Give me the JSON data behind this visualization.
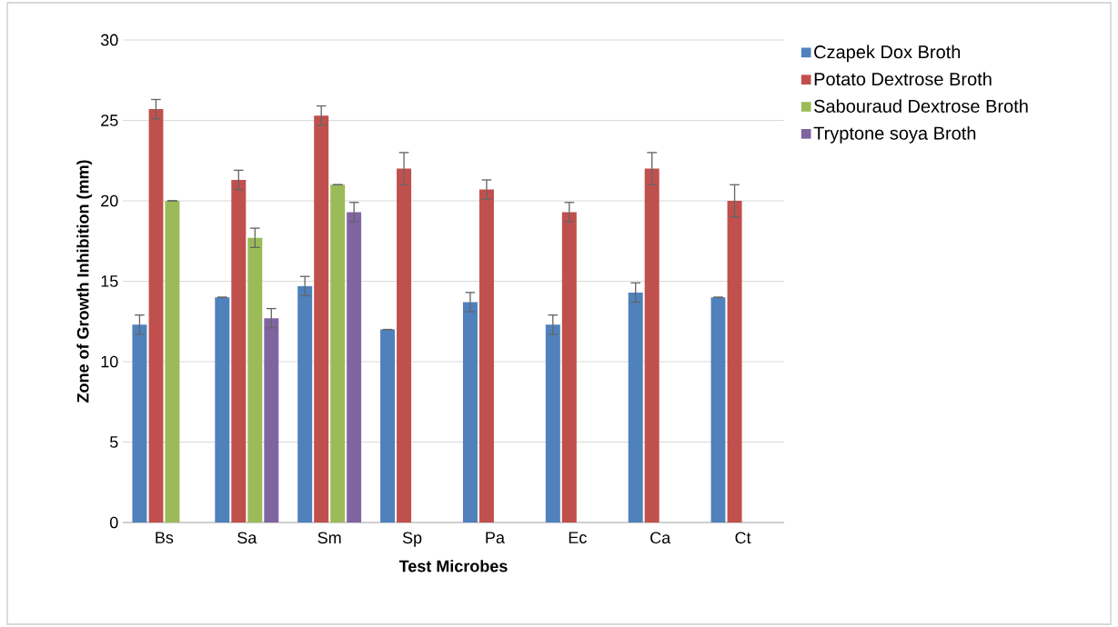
{
  "chart_data": {
    "type": "bar",
    "categories": [
      "Bs",
      "Sa",
      "Sm",
      "Sp",
      "Pa",
      "Ec",
      "Ca",
      "Ct"
    ],
    "xlabel": "Test Microbes",
    "ylabel": "Zone of Growth Inhibition (mm)",
    "series": [
      {
        "name": "Czapek Dox Broth",
        "color": "#4f81bd",
        "values": [
          12.3,
          14,
          14.7,
          12,
          13.7,
          12.3,
          14.3,
          14
        ],
        "errors": [
          0.6,
          0,
          0.6,
          0,
          0.6,
          0.6,
          0.6,
          0
        ]
      },
      {
        "name": "Potato Dextrose Broth",
        "color": "#c0504d",
        "values": [
          25.7,
          21.3,
          25.3,
          22,
          20.7,
          19.3,
          22,
          20
        ],
        "errors": [
          0.6,
          0.6,
          0.6,
          1,
          0.6,
          0.6,
          1,
          1
        ]
      },
      {
        "name": "Sabouraud Dextrose Broth",
        "color": "#9bbb59",
        "values": [
          20,
          17.7,
          21,
          null,
          null,
          null,
          null,
          null
        ],
        "errors": [
          0,
          0.6,
          0,
          null,
          null,
          null,
          null,
          null
        ]
      },
      {
        "name": "Tryptone soya Broth",
        "color": "#8064a2",
        "values": [
          null,
          12.7,
          19.3,
          null,
          null,
          null,
          null,
          null
        ],
        "errors": [
          null,
          0.6,
          0.6,
          null,
          null,
          null,
          null,
          null
        ]
      }
    ],
    "ylim": [
      0,
      30
    ],
    "yticks": [
      0,
      5,
      10,
      15,
      20,
      25,
      30
    ],
    "grid": "y",
    "legend": "right"
  }
}
